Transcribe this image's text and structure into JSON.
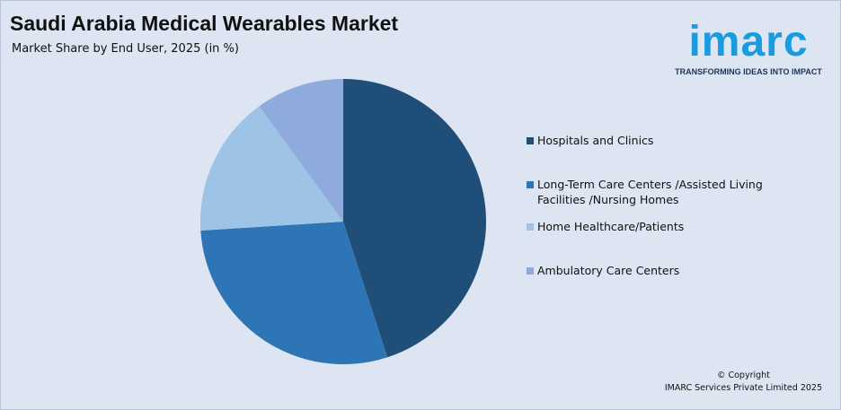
{
  "chart_data": {
    "type": "pie",
    "title": "Saudi Arabia Medical Wearables Market",
    "subtitle": "Market Share by End User, 2025 (in %)",
    "categories": [
      "Hospitals and Clinics",
      "Long-Term Care Centers /Assisted Living Facilities /Nursing Homes",
      "Home Healthcare/Patients",
      "Ambulatory Care Centers"
    ],
    "values": [
      45,
      29,
      16,
      10
    ],
    "colors": [
      "#1f4e79",
      "#2e75b6",
      "#9dc3e6",
      "#8faadc"
    ]
  },
  "brand": {
    "name": "imarc",
    "tagline": "TRANSFORMING IDEAS INTO IMPACT"
  },
  "copyright": [
    "© Copyright",
    "IMARC Services Private Limited 2025"
  ]
}
